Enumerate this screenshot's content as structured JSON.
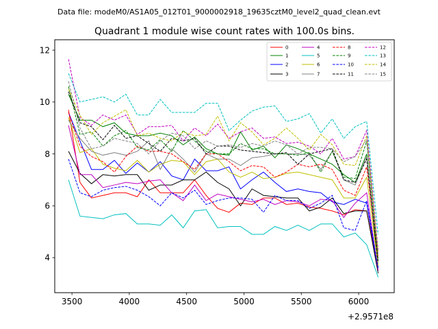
{
  "chart_data": {
    "type": "line",
    "suptitle": "Data file: modeM0/AS1A05_012T01_9000002918_19635cztM0_level2_quad_clean.evt",
    "title": "Quadrant 1 module wise count rates with 100.0s bins.",
    "xlabel": "",
    "ylabel": "",
    "x_offset_label": "+2.9571e8",
    "xlim": [
      3350,
      6310
    ],
    "ylim": [
      2.65,
      12.4
    ],
    "xticks": [
      3500,
      4000,
      4500,
      5000,
      5500,
      6000
    ],
    "yticks": [
      4,
      6,
      8,
      10,
      12
    ],
    "x": [
      3470,
      3570,
      3670,
      3770,
      3870,
      3970,
      4070,
      4170,
      4270,
      4370,
      4470,
      4570,
      4670,
      4770,
      4870,
      4970,
      5070,
      5170,
      5270,
      5370,
      5470,
      5570,
      5670,
      5770,
      5870,
      5970,
      6070,
      6170
    ],
    "legend_position": "upper-right",
    "series": [
      {
        "name": "0",
        "color": "#ff0000",
        "dash": "solid",
        "values": [
          9.7,
          6.9,
          6.3,
          6.4,
          6.5,
          6.5,
          6.35,
          7.0,
          6.5,
          6.5,
          6.5,
          7.0,
          6.4,
          5.9,
          5.75,
          6.1,
          6.05,
          6.3,
          6.3,
          6.05,
          6.1,
          5.95,
          5.9,
          5.8,
          5.65,
          5.85,
          5.8,
          3.6
        ]
      },
      {
        "name": "1",
        "color": "#008000",
        "dash": "solid",
        "values": [
          10.3,
          9.3,
          9.3,
          9.05,
          9.2,
          8.8,
          8.7,
          8.7,
          8.8,
          8.7,
          8.35,
          8.65,
          8.2,
          8.0,
          7.95,
          8.85,
          8.15,
          8.3,
          7.85,
          8.35,
          8.2,
          8.0,
          7.8,
          7.6,
          7.2,
          6.9,
          8.0,
          3.6
        ]
      },
      {
        "name": "2",
        "color": "#0000ff",
        "dash": "solid",
        "values": [
          9.6,
          8.5,
          7.4,
          7.4,
          7.75,
          7.25,
          7.65,
          7.3,
          7.7,
          7.15,
          7.0,
          7.8,
          7.35,
          7.35,
          7.5,
          6.65,
          7.0,
          7.3,
          6.9,
          6.55,
          6.65,
          6.55,
          6.5,
          6.15,
          6.05,
          6.25,
          6.1,
          3.5
        ]
      },
      {
        "name": "3",
        "color": "#000000",
        "dash": "solid",
        "values": [
          8.1,
          7.25,
          6.85,
          7.2,
          7.15,
          7.2,
          7.2,
          6.6,
          6.8,
          6.8,
          7.0,
          7.0,
          7.3,
          6.9,
          6.65,
          6.0,
          6.65,
          6.4,
          6.35,
          6.3,
          6.3,
          5.8,
          5.95,
          6.3,
          5.7,
          5.8,
          5.8,
          3.4
        ]
      },
      {
        "name": "4",
        "color": "#c000c0",
        "dash": "solid",
        "values": [
          9.1,
          7.2,
          7.2,
          6.7,
          6.8,
          6.9,
          6.85,
          6.95,
          7.0,
          6.5,
          6.2,
          6.8,
          6.2,
          6.45,
          6.35,
          6.25,
          6.15,
          6.25,
          6.05,
          6.2,
          6.15,
          6.0,
          6.25,
          6.2,
          5.55,
          6.1,
          6.5,
          3.5
        ]
      },
      {
        "name": "5",
        "color": "#00c0c0",
        "dash": "solid",
        "values": [
          7.0,
          5.6,
          5.55,
          5.5,
          5.65,
          5.7,
          5.3,
          5.3,
          5.25,
          5.65,
          5.15,
          5.8,
          5.85,
          5.15,
          5.2,
          5.2,
          4.9,
          4.9,
          5.2,
          5.05,
          5.25,
          5.05,
          5.3,
          5.3,
          4.8,
          4.95,
          4.5,
          3.25
        ]
      },
      {
        "name": "6",
        "color": "#bfbf00",
        "dash": "solid",
        "values": [
          9.4,
          8.05,
          8.2,
          7.6,
          7.45,
          7.35,
          7.75,
          7.3,
          7.6,
          7.75,
          7.7,
          7.2,
          7.7,
          7.8,
          7.3,
          7.1,
          7.3,
          7.05,
          7.1,
          7.25,
          7.3,
          7.2,
          7.1,
          7.0,
          6.3,
          6.3,
          7.1,
          3.7
        ]
      },
      {
        "name": "7",
        "color": "#808080",
        "dash": "solid",
        "values": [
          9.3,
          8.6,
          8.1,
          7.95,
          8.05,
          7.95,
          8.1,
          8.5,
          7.4,
          8.2,
          7.8,
          7.3,
          8.0,
          7.8,
          7.8,
          7.55,
          7.85,
          7.9,
          8.0,
          8.0,
          8.0,
          7.95,
          7.4,
          8.1,
          7.0,
          6.8,
          7.9,
          3.9
        ]
      },
      {
        "name": "8",
        "color": "#ff0000",
        "dash": "dashed",
        "values": [
          9.6,
          8.3,
          7.9,
          7.7,
          7.3,
          7.9,
          8.3,
          8.1,
          8.1,
          8.0,
          7.7,
          7.4,
          8.0,
          8.0,
          7.7,
          7.35,
          7.55,
          7.5,
          7.1,
          7.3,
          7.6,
          7.5,
          7.6,
          7.4,
          6.6,
          6.4,
          7.5,
          4.0
        ]
      },
      {
        "name": "9",
        "color": "#008000",
        "dash": "dashed",
        "values": [
          10.6,
          8.75,
          8.85,
          8.3,
          8.7,
          8.9,
          8.25,
          8.15,
          8.55,
          8.1,
          8.9,
          8.5,
          8.1,
          8.0,
          8.0,
          8.4,
          8.2,
          8.2,
          8.0,
          8.0,
          7.95,
          8.05,
          7.3,
          8.1,
          7.1,
          7.05,
          8.5,
          3.9
        ]
      },
      {
        "name": "10",
        "color": "#0000ff",
        "dash": "dashed",
        "values": [
          7.8,
          6.5,
          6.35,
          6.6,
          6.7,
          6.75,
          6.6,
          6.35,
          6.0,
          6.5,
          6.3,
          6.6,
          6.05,
          6.2,
          6.3,
          6.3,
          6.25,
          5.75,
          6.4,
          6.2,
          6.2,
          5.9,
          6.1,
          6.4,
          5.15,
          5.05,
          6.2,
          3.6
        ]
      },
      {
        "name": "11",
        "color": "#000000",
        "dash": "dashed",
        "values": [
          10.4,
          9.2,
          9.05,
          8.55,
          9.1,
          8.6,
          8.7,
          8.4,
          8.1,
          8.6,
          8.5,
          8.6,
          8.0,
          8.3,
          8.3,
          8.15,
          8.1,
          8.05,
          8.0,
          8.05,
          7.6,
          8.0,
          8.1,
          8.2,
          7.0,
          6.9,
          7.8,
          3.8
        ]
      },
      {
        "name": "12",
        "color": "#c000c0",
        "dash": "dashed",
        "values": [
          11.65,
          9.4,
          9.1,
          9.5,
          9.3,
          9.5,
          8.75,
          9.05,
          9.05,
          9.1,
          8.5,
          9.0,
          8.7,
          9.15,
          8.6,
          8.85,
          9.0,
          8.6,
          8.65,
          8.4,
          8.45,
          8.3,
          8.0,
          8.6,
          7.8,
          7.9,
          8.9,
          4.3
        ]
      },
      {
        "name": "13",
        "color": "#00c0c0",
        "dash": "dashed",
        "values": [
          11.1,
          10.0,
          10.1,
          10.2,
          10.0,
          10.3,
          9.5,
          9.5,
          10.1,
          9.6,
          9.6,
          9.6,
          9.95,
          9.95,
          8.9,
          9.3,
          9.65,
          9.8,
          9.85,
          9.25,
          9.35,
          9.55,
          8.8,
          9.35,
          8.6,
          9.05,
          9.25,
          4.9
        ]
      },
      {
        "name": "14",
        "color": "#bfbf00",
        "dash": "dashed",
        "values": [
          10.5,
          9.5,
          8.75,
          9.2,
          9.45,
          9.7,
          8.7,
          8.8,
          8.6,
          8.5,
          8.85,
          8.7,
          8.75,
          9.45,
          8.5,
          9.2,
          8.85,
          8.35,
          8.6,
          9.0,
          8.6,
          8.15,
          8.75,
          8.35,
          7.6,
          7.55,
          8.7,
          4.2
        ]
      },
      {
        "name": "15",
        "color": "#808080",
        "dash": "dashed",
        "values": [
          10.8,
          9.0,
          8.2,
          8.3,
          8.6,
          8.5,
          8.4,
          8.0,
          8.5,
          8.8,
          8.7,
          8.2,
          8.5,
          8.3,
          8.35,
          8.25,
          8.4,
          8.3,
          8.5,
          8.35,
          8.0,
          8.25,
          8.25,
          8.2,
          7.7,
          7.9,
          8.55,
          4.1
        ]
      }
    ]
  }
}
